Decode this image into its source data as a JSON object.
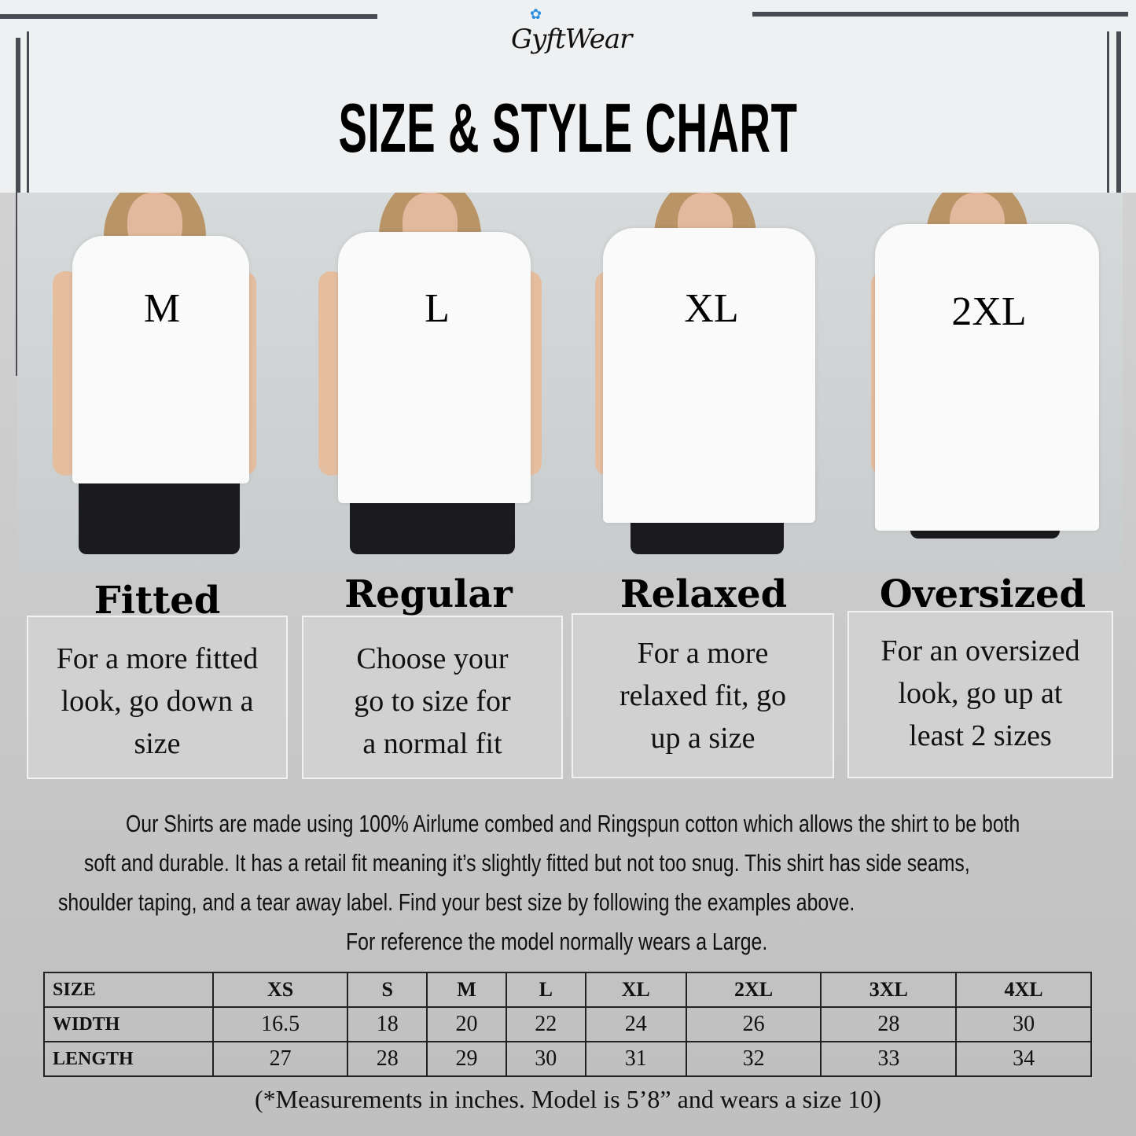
{
  "brand": {
    "logo_text": "GyftWear",
    "accent": "#2a8de0"
  },
  "title": "SIZE & STYLE CHART",
  "styles": [
    {
      "size": "M",
      "fit": "Fitted",
      "description": [
        "For a more fitted",
        "look, go down a",
        "size"
      ]
    },
    {
      "size": "L",
      "fit": "Regular",
      "description": [
        "Choose your",
        "go to size for",
        "a normal fit"
      ]
    },
    {
      "size": "XL",
      "fit": "Relaxed",
      "description": [
        "For a more",
        "relaxed fit, go",
        "up a size"
      ]
    },
    {
      "size": "2XL",
      "fit": "Oversized",
      "description": [
        "For an oversized",
        "look, go up at",
        "least 2 sizes"
      ]
    }
  ],
  "info": [
    "Our Shirts are made using 100% Airlume combed and Ringspun cotton which allows the shirt to be both",
    "soft and durable. It has a retail fit meaning it’s slightly fitted but not too snug. This shirt has side seams,",
    "shoulder taping, and a tear away label. Find your best size by following the examples above.",
    "For reference the model normally wears a Large."
  ],
  "table": {
    "header": [
      "SIZE",
      "XS",
      "S",
      "M",
      "L",
      "XL",
      "2XL",
      "3XL",
      "4XL"
    ],
    "rows": [
      [
        "WIDTH",
        "16.5",
        "18",
        "20",
        "22",
        "24",
        "26",
        "28",
        "30"
      ],
      [
        "LENGTH",
        "27",
        "28",
        "29",
        "30",
        "31",
        "32",
        "33",
        "34"
      ]
    ]
  },
  "footnote": "(*Measurements in inches. Model is 5’8” and wears a size 10)"
}
